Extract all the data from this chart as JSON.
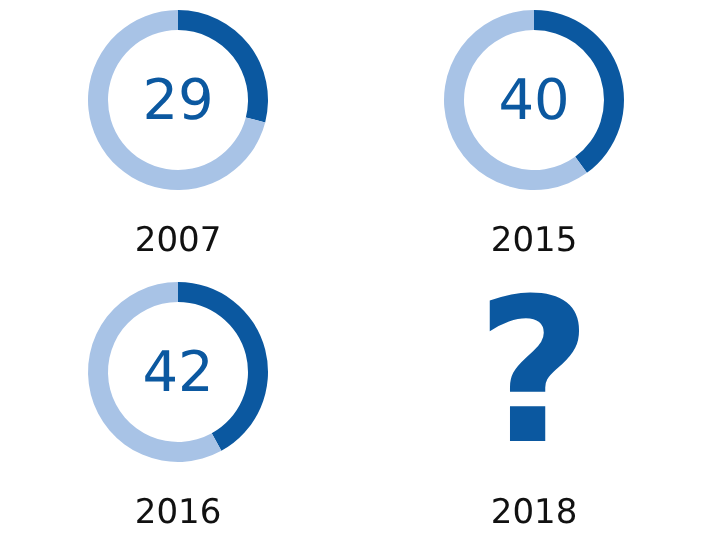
{
  "chart_data": [
    {
      "type": "donut",
      "title": "2007",
      "categories": [
        null,
        null
      ],
      "values": [
        29,
        71
      ],
      "colors": [
        "#0b58a0",
        "#a8c3e6"
      ],
      "annotations": [
        "29"
      ]
    },
    {
      "type": "donut",
      "title": "2015",
      "categories": [
        null,
        null
      ],
      "values": [
        40,
        60
      ],
      "colors": [
        "#0b58a0",
        "#a8c3e6"
      ],
      "annotations": [
        "40"
      ]
    },
    {
      "type": "donut",
      "title": "2016",
      "categories": [
        null,
        null
      ],
      "values": [
        42,
        58
      ],
      "colors": [
        "#0b58a0",
        "#a8c3e6"
      ],
      "annotations": [
        "42"
      ]
    },
    {
      "type": "other",
      "title": "2018",
      "annotations": [
        "?"
      ]
    }
  ]
}
